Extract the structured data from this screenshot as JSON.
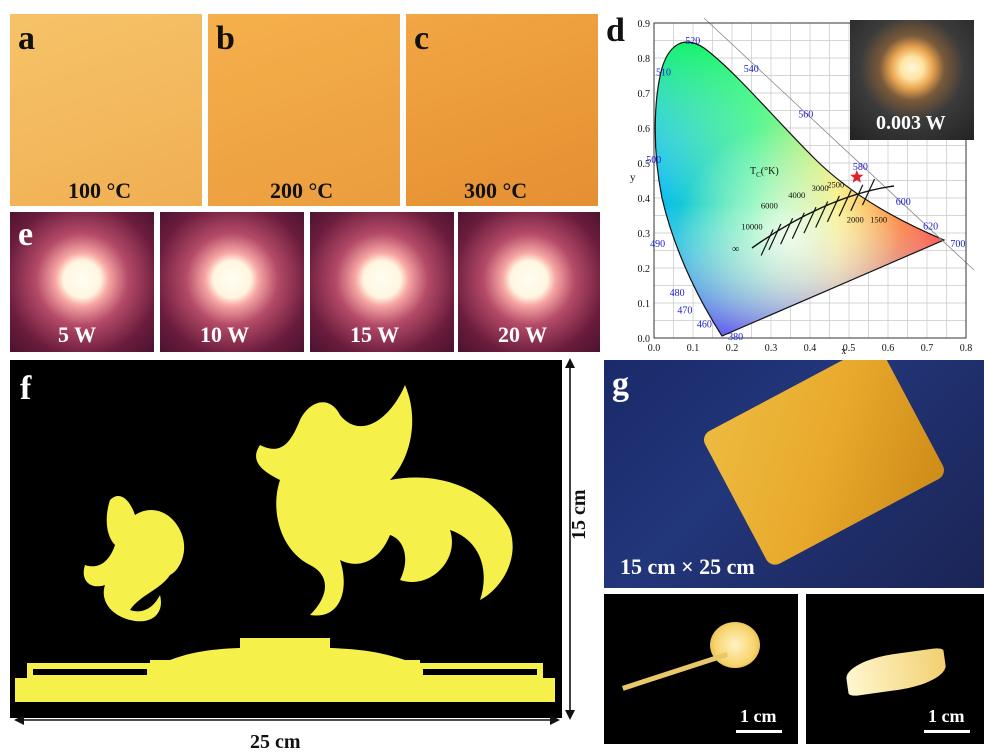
{
  "panels": {
    "a": {
      "label": "a",
      "temp": "100 °C"
    },
    "b": {
      "label": "b",
      "temp": "200 °C"
    },
    "c": {
      "label": "c",
      "temp": "300 °C"
    },
    "d": {
      "label": "d",
      "inset_power": "0.003 W"
    },
    "e": {
      "label": "e",
      "powers": [
        "5 W",
        "10 W",
        "15 W",
        "20 W"
      ]
    },
    "f": {
      "label": "f",
      "width_label": "25 cm",
      "height_label": "15 cm"
    },
    "g": {
      "label": "g",
      "size_label": "15 cm × 25 cm",
      "scale_left": "1 cm",
      "scale_right": "1 cm"
    }
  },
  "cie": {
    "x_label": "x",
    "y_label": "y",
    "tc_label": "T",
    "tc_sub": "C",
    "tc_unit": "(°K)",
    "infinity": "∞",
    "x_ticks": [
      "0.0",
      "0.1",
      "0.2",
      "0.3",
      "0.4",
      "0.5",
      "0.6",
      "0.7",
      "0.8"
    ],
    "y_ticks": [
      "0.0",
      "0.1",
      "0.2",
      "0.3",
      "0.4",
      "0.5",
      "0.6",
      "0.7",
      "0.8",
      "0.9"
    ],
    "wavelengths": [
      "520",
      "540",
      "560",
      "580",
      "600",
      "620",
      "700",
      "510",
      "500",
      "490",
      "480",
      "470",
      "460",
      "380"
    ],
    "cct_labels": [
      "10000",
      "6000",
      "4000",
      "3000",
      "2500",
      "2000",
      "1500"
    ],
    "marker_point": {
      "x": 0.52,
      "y": 0.46
    },
    "accent_wavelength": "#1b1bd0",
    "marker_color": "#e0202a"
  }
}
